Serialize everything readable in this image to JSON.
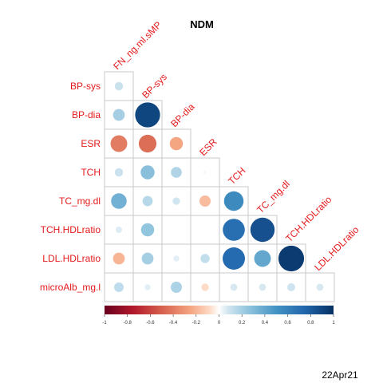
{
  "chart_data": {
    "type": "heatmap",
    "subtype": "correlation-circle-lower",
    "title": "NDM",
    "variables": [
      "FN_ng.ml.sMP",
      "BP-sys",
      "BP-dia",
      "ESR",
      "TCH",
      "TC_mg.dl",
      "TCH.HDLratio",
      "LDL.HDLratio",
      "microAlb_mg.l"
    ],
    "row_labels": [
      "BP-sys",
      "BP-dia",
      "ESR",
      "TCH",
      "TC_mg.dl",
      "TCH.HDLratio",
      "LDL.HDLratio",
      "microAlb_mg.l"
    ],
    "col_labels": [
      "FN_ng.ml.sMP",
      "BP-sys",
      "BP-dia",
      "ESR",
      "TCH",
      "TC_mg.dl",
      "TCH.HDLratio",
      "LDL.HDLratio"
    ],
    "correlations": [
      [
        0.1
      ],
      [
        0.2,
        0.9
      ],
      [
        -0.4,
        -0.45,
        -0.25
      ],
      [
        0.1,
        0.28,
        0.17,
        0.02
      ],
      [
        0.35,
        0.15,
        0.08,
        -0.18,
        0.55
      ],
      [
        0.06,
        0.25,
        null,
        null,
        0.7,
        0.85
      ],
      [
        -0.2,
        0.2,
        0.05,
        0.12,
        0.72,
        0.4,
        0.95
      ],
      [
        0.13,
        0.05,
        0.18,
        -0.08,
        0.07,
        0.07,
        0.09,
        0.07
      ]
    ],
    "colorbar": {
      "range": [
        -1,
        1
      ],
      "ticks": [
        "-1",
        "-0.8",
        "-0.6",
        "-0.4",
        "-0.2",
        "0",
        "0.2",
        "0.4",
        "0.6",
        "0.8",
        "1"
      ]
    },
    "colors": {
      "negative": "#67001f",
      "mid": "#ffffff",
      "positive": "#053061",
      "label": "#e41a1c",
      "grid": "#c8c8c8"
    }
  },
  "footer": {
    "date": "22Apr21"
  }
}
